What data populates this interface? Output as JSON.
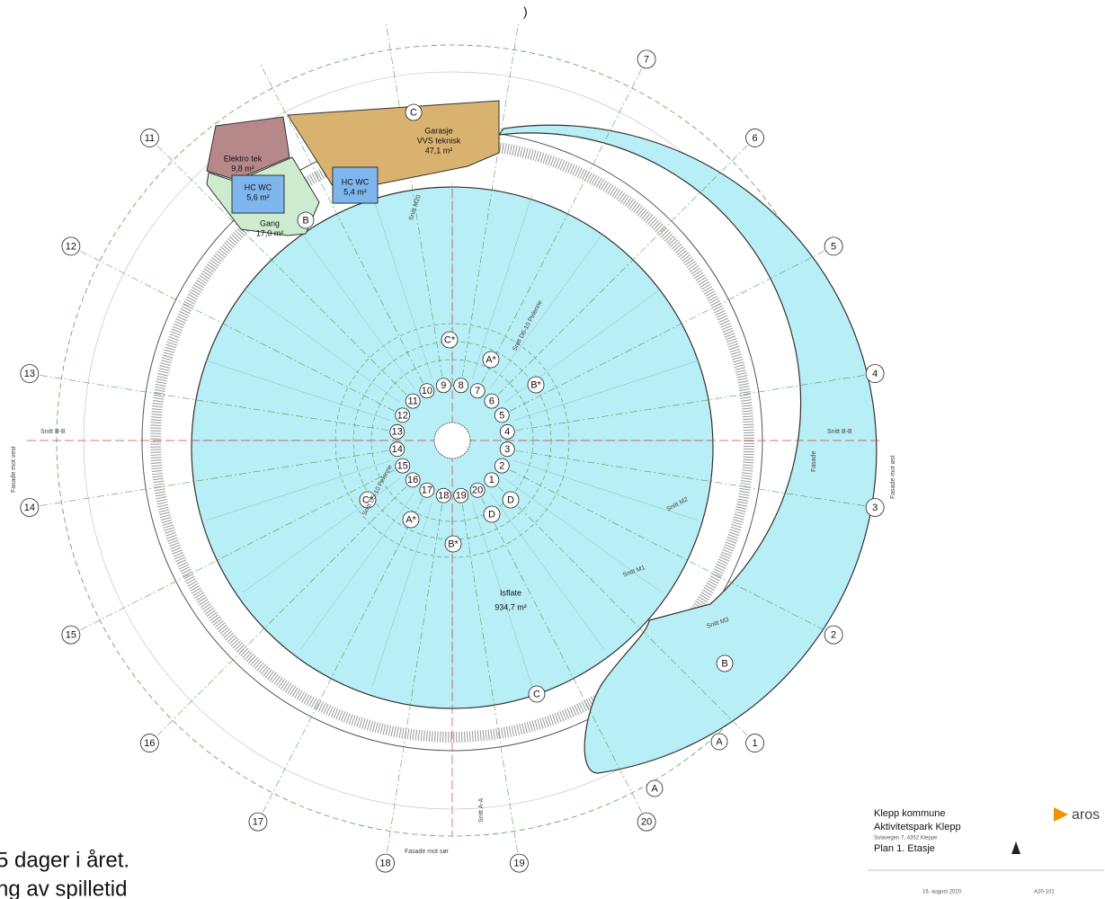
{
  "top_mark": ")",
  "axes_outer": [
    "1",
    "2",
    "3",
    "4",
    "5",
    "6",
    "7",
    "11",
    "12",
    "13",
    "14",
    "15",
    "16",
    "17",
    "18",
    "19",
    "20"
  ],
  "axes_inner": [
    "1",
    "2",
    "3",
    "4",
    "5",
    "6",
    "7",
    "8",
    "9",
    "10",
    "11",
    "12",
    "13",
    "14",
    "15",
    "16",
    "17",
    "18",
    "19",
    "20"
  ],
  "grid_letters": [
    "A",
    "A",
    "B",
    "B",
    "C",
    "C",
    "D",
    "D",
    "A*",
    "A*",
    "B*",
    "B*",
    "C*",
    "C*"
  ],
  "rooms": [
    {
      "name": "Elektro tek",
      "area": "9,8 m²"
    },
    {
      "name": "HC WC",
      "area": "5,6 m²"
    },
    {
      "name": "HC WC",
      "area": "5,4 m²"
    },
    {
      "name": "Gang",
      "area": "17,0 m²"
    },
    {
      "name": "Garasje",
      "name2": "VVS teknisk",
      "area": "47,1 m²"
    },
    {
      "name": "Isflate",
      "area": "934,7 m²"
    }
  ],
  "sections": [
    "Snitt B-B",
    "Snitt B-B",
    "Snitt A-A",
    "Snitt M1",
    "Snitt M2",
    "Snitt M3",
    "Snitt M20",
    "Snitt D6-10 Pelenne",
    "Snitt D5-10 Pelenne"
  ],
  "facades": [
    "Fasade mot øst",
    "Fasade mot vest",
    "Fasade mot sør",
    "Fasade"
  ],
  "title_block": {
    "client": "Klepp kommune",
    "project": "Aktivitetspark Klepp",
    "address": "Solavegen 7, 4352 Kleppe",
    "drawing": "Plan 1. Etasje",
    "company": "aros",
    "date": "16. august 2020",
    "number": "A20-101"
  },
  "caption": [
    "5 dager i året.",
    "ng av spilletid"
  ]
}
